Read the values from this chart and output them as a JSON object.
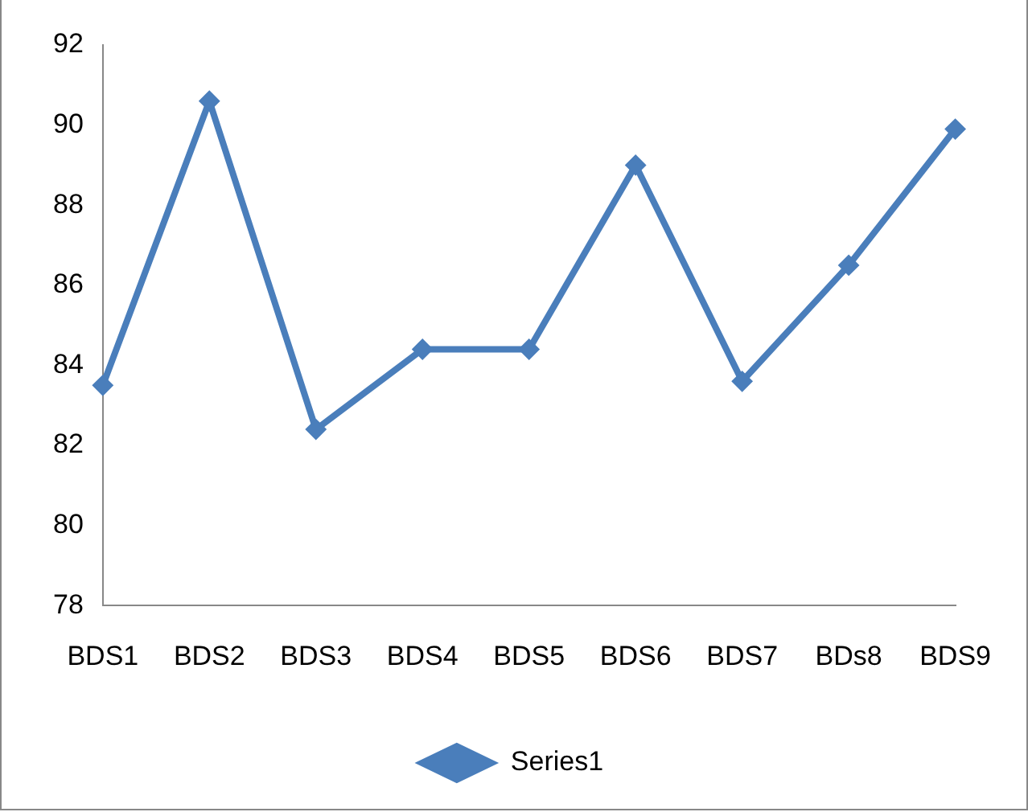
{
  "chart_data": {
    "type": "line",
    "categories": [
      "BDS1",
      "BDS2",
      "BDS3",
      "BDS4",
      "BDS5",
      "BDS6",
      "BDS7",
      "BDs8",
      "BDS9"
    ],
    "series": [
      {
        "name": "Series1",
        "color": "#4a7ebb",
        "values": [
          83.5,
          90.6,
          82.4,
          84.4,
          84.4,
          89.0,
          83.6,
          86.5,
          89.9
        ]
      }
    ],
    "ylim": [
      78,
      92
    ],
    "yticks": [
      78,
      80,
      82,
      84,
      86,
      88,
      90,
      92
    ],
    "grid": false,
    "legend": "bottom",
    "marker": "diamond",
    "line_style": "solid"
  }
}
